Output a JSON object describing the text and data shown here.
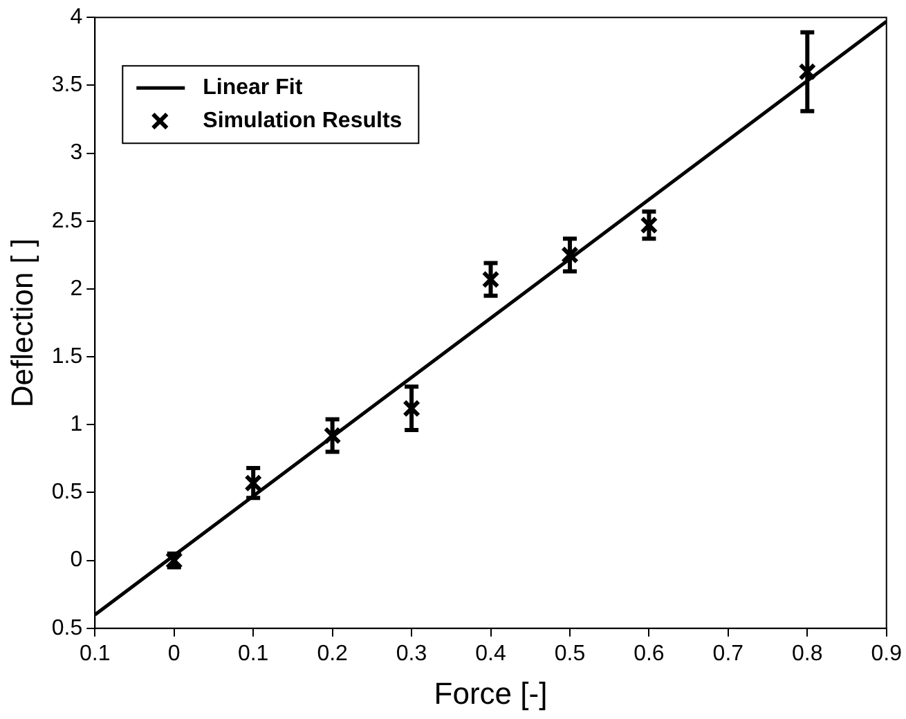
{
  "chart_data": {
    "type": "scatter",
    "xlabel": "Force [-]",
    "ylabel": "Deflection [ ]",
    "xlim": [
      -0.1,
      0.9
    ],
    "xticks": [
      {
        "value": -0.1,
        "label": "0.1"
      },
      0,
      0.1,
      0.2,
      0.3,
      0.4,
      0.5,
      0.6,
      0.7,
      0.8,
      0.9
    ],
    "ylim": [
      -0.5,
      4
    ],
    "yticks": [
      {
        "value": -0.5,
        "label": "0.5"
      },
      0,
      0.5,
      1,
      1.5,
      2,
      2.5,
      3,
      3.5,
      4
    ],
    "grid": false,
    "legend": "top left",
    "series": [
      {
        "name": "Linear Fit",
        "type": "line",
        "color": "#000000",
        "marker": "none",
        "line_style": "solid",
        "x": [
          -0.1,
          0.9
        ],
        "values": [
          -0.4,
          3.97
        ]
      },
      {
        "name": "Simulation Results",
        "color": "#000000",
        "marker": "cross",
        "x": [
          0,
          0.1,
          0.2,
          0.3,
          0.4,
          0.5,
          0.6,
          0.8
        ],
        "values": [
          0.0,
          0.57,
          0.92,
          1.12,
          2.07,
          2.25,
          2.47,
          3.6
        ],
        "errors": [
          0.05,
          0.11,
          0.12,
          0.16,
          0.12,
          0.12,
          0.1,
          0.29
        ]
      }
    ]
  }
}
